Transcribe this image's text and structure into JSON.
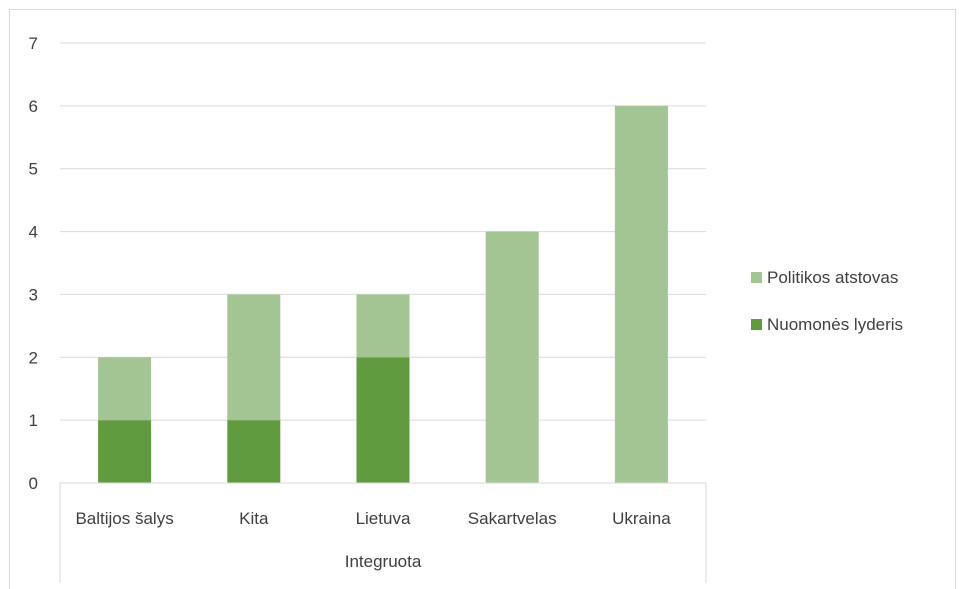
{
  "chart_data": {
    "type": "bar",
    "stacked": true,
    "categories": [
      "Baltijos šalys",
      "Kita",
      "Lietuva",
      "Sakartvelas",
      "Ukraina"
    ],
    "group_label": "Integruota",
    "series": [
      {
        "name": "Nuomonės lyderis",
        "values": [
          1,
          1,
          2,
          0,
          0
        ],
        "color": "#609b3f"
      },
      {
        "name": "Politikos atstovas",
        "values": [
          1,
          2,
          1,
          4,
          6
        ],
        "color": "#a3c593"
      }
    ],
    "ylim": [
      0,
      7
    ],
    "yticks": [
      "0",
      "1",
      "2",
      "3",
      "4",
      "5",
      "6",
      "7"
    ],
    "grid": true,
    "legend_position": "right",
    "legend_order": [
      "Politikos atstovas",
      "Nuomonės lyderis"
    ]
  }
}
